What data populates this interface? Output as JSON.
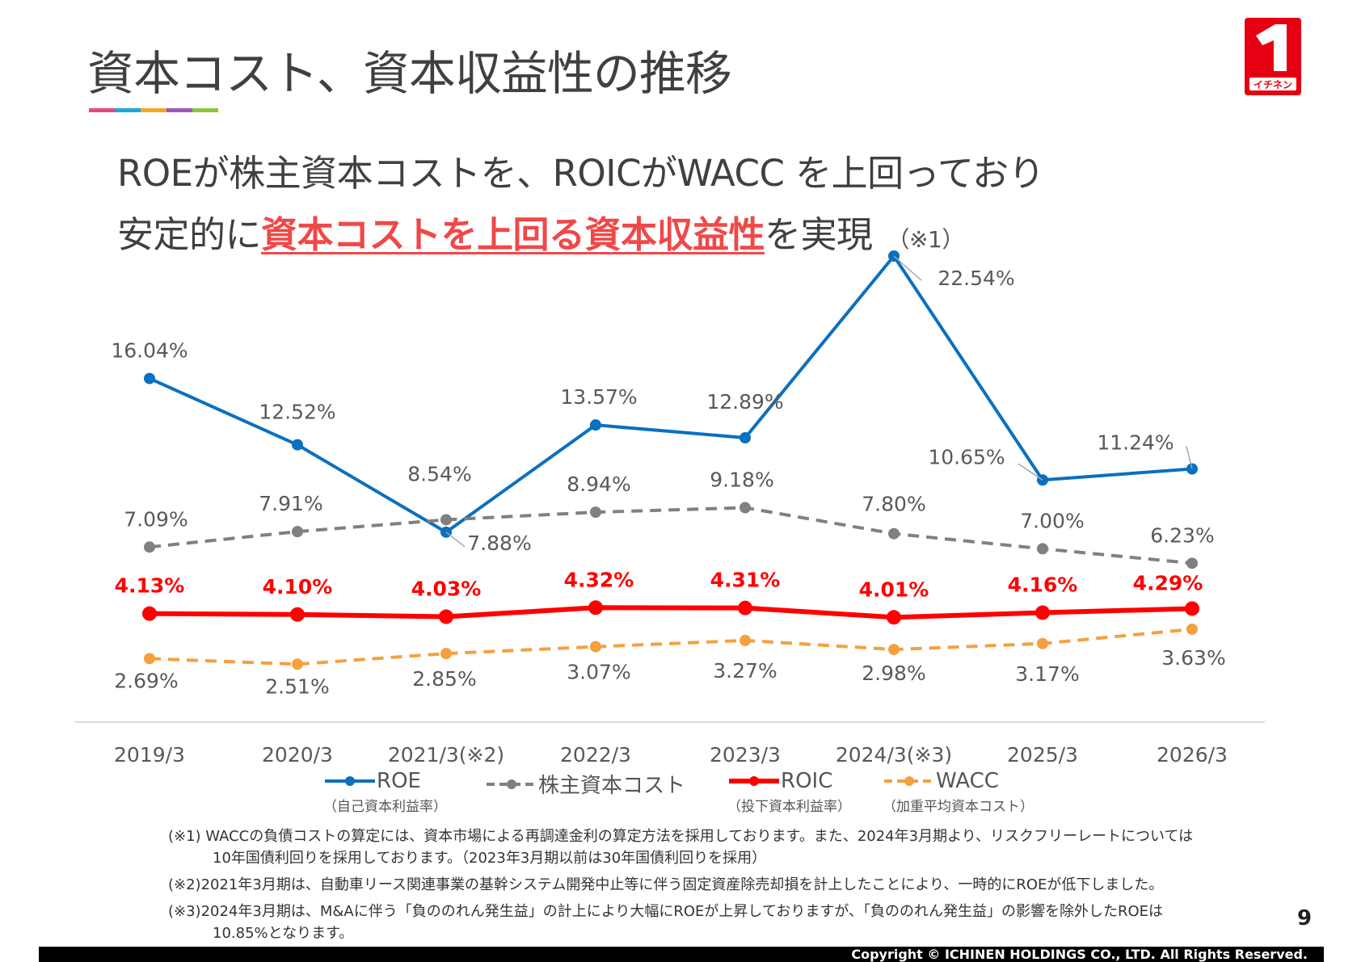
{
  "title": "資本コスト、資本収益性の推移",
  "accent_colors": [
    "#e8477a",
    "#1fa6d8",
    "#f5a623",
    "#9b59b6",
    "#8dc63f"
  ],
  "logo": {
    "text": "イチネン",
    "color": "#e60012"
  },
  "headline": {
    "line1": "ROEが株主資本コストを、ROICがWACC を上回っており",
    "line2_prefix": "安定的に",
    "line2_highlight": "資本コストを上回る資本収益性",
    "line2_suffix": "を実現",
    "line2_note": "（※1）"
  },
  "chart_data": {
    "type": "line",
    "categories": [
      "2019/3",
      "2020/3",
      "2021/3(※2)",
      "2022/3",
      "2023/3",
      "2024/3(※3)",
      "2025/3",
      "2026/3"
    ],
    "series": [
      {
        "name": "ROE",
        "sub": "（自己資本利益率）",
        "color": "#0a70c0",
        "dash": false,
        "bold_labels": false,
        "values": [
          16.04,
          12.52,
          7.88,
          13.57,
          12.89,
          22.54,
          10.65,
          11.24
        ],
        "labels": [
          "16.04%",
          "12.52%",
          "7.88%",
          "13.57%",
          "12.89%",
          "22.54%",
          "10.65%",
          "11.24%"
        ]
      },
      {
        "name": "株主資本コスト",
        "sub": "",
        "color": "#808080",
        "dash": true,
        "bold_labels": false,
        "values": [
          7.09,
          7.91,
          8.54,
          8.94,
          9.18,
          7.8,
          7.0,
          6.23
        ],
        "labels": [
          "7.09%",
          "7.91%",
          "8.54%",
          "8.94%",
          "9.18%",
          "7.80%",
          "7.00%",
          "6.23%"
        ]
      },
      {
        "name": "ROIC",
        "sub": "（投下資本利益率）",
        "color": "#ff0000",
        "dash": false,
        "bold_labels": true,
        "values": [
          4.13,
          4.1,
          4.03,
          4.32,
          4.31,
          4.01,
          4.16,
          4.29
        ],
        "labels": [
          "4.13%",
          "4.10%",
          "4.03%",
          "4.32%",
          "4.31%",
          "4.01%",
          "4.16%",
          "4.29%"
        ]
      },
      {
        "name": "WACC",
        "sub": "（加重平均資本コスト）",
        "color": "#f5a040",
        "dash": true,
        "bold_labels": false,
        "values": [
          2.69,
          2.51,
          2.85,
          3.07,
          3.27,
          2.98,
          3.17,
          3.63
        ],
        "labels": [
          "2.69%",
          "2.51%",
          "2.85%",
          "3.07%",
          "3.27%",
          "2.98%",
          "3.17%",
          "3.63%"
        ]
      }
    ],
    "legend": "bottom",
    "grid": false
  },
  "footnotes": {
    "n1_line1": "(※1) WACCの負債コストの算定には、資本市場による再調達金利の算定方法を採用しております。また、2024年3月期より、リスクフリーレートについては",
    "n1_line2": "10年国債利回りを採用しております。（2023年3月期以前は30年国債利回りを採用）",
    "n2": "(※2)2021年3月期は、自動車リース関連事業の基幹システム開発中止等に伴う固定資産除売却損を計上したことにより、一時的にROEが低下しました。",
    "n3_line1": "(※3)2024年3月期は、M&Aに伴う「負ののれん発生益」の計上により大幅にROEが上昇しておりますが、「負ののれん発生益」の影響を除外したROEは",
    "n3_line2": "10.85%となります。"
  },
  "page_number": "9",
  "copyright": "Copyright © ICHINEN HOLDINGS CO., LTD.  All Rights Reserved."
}
